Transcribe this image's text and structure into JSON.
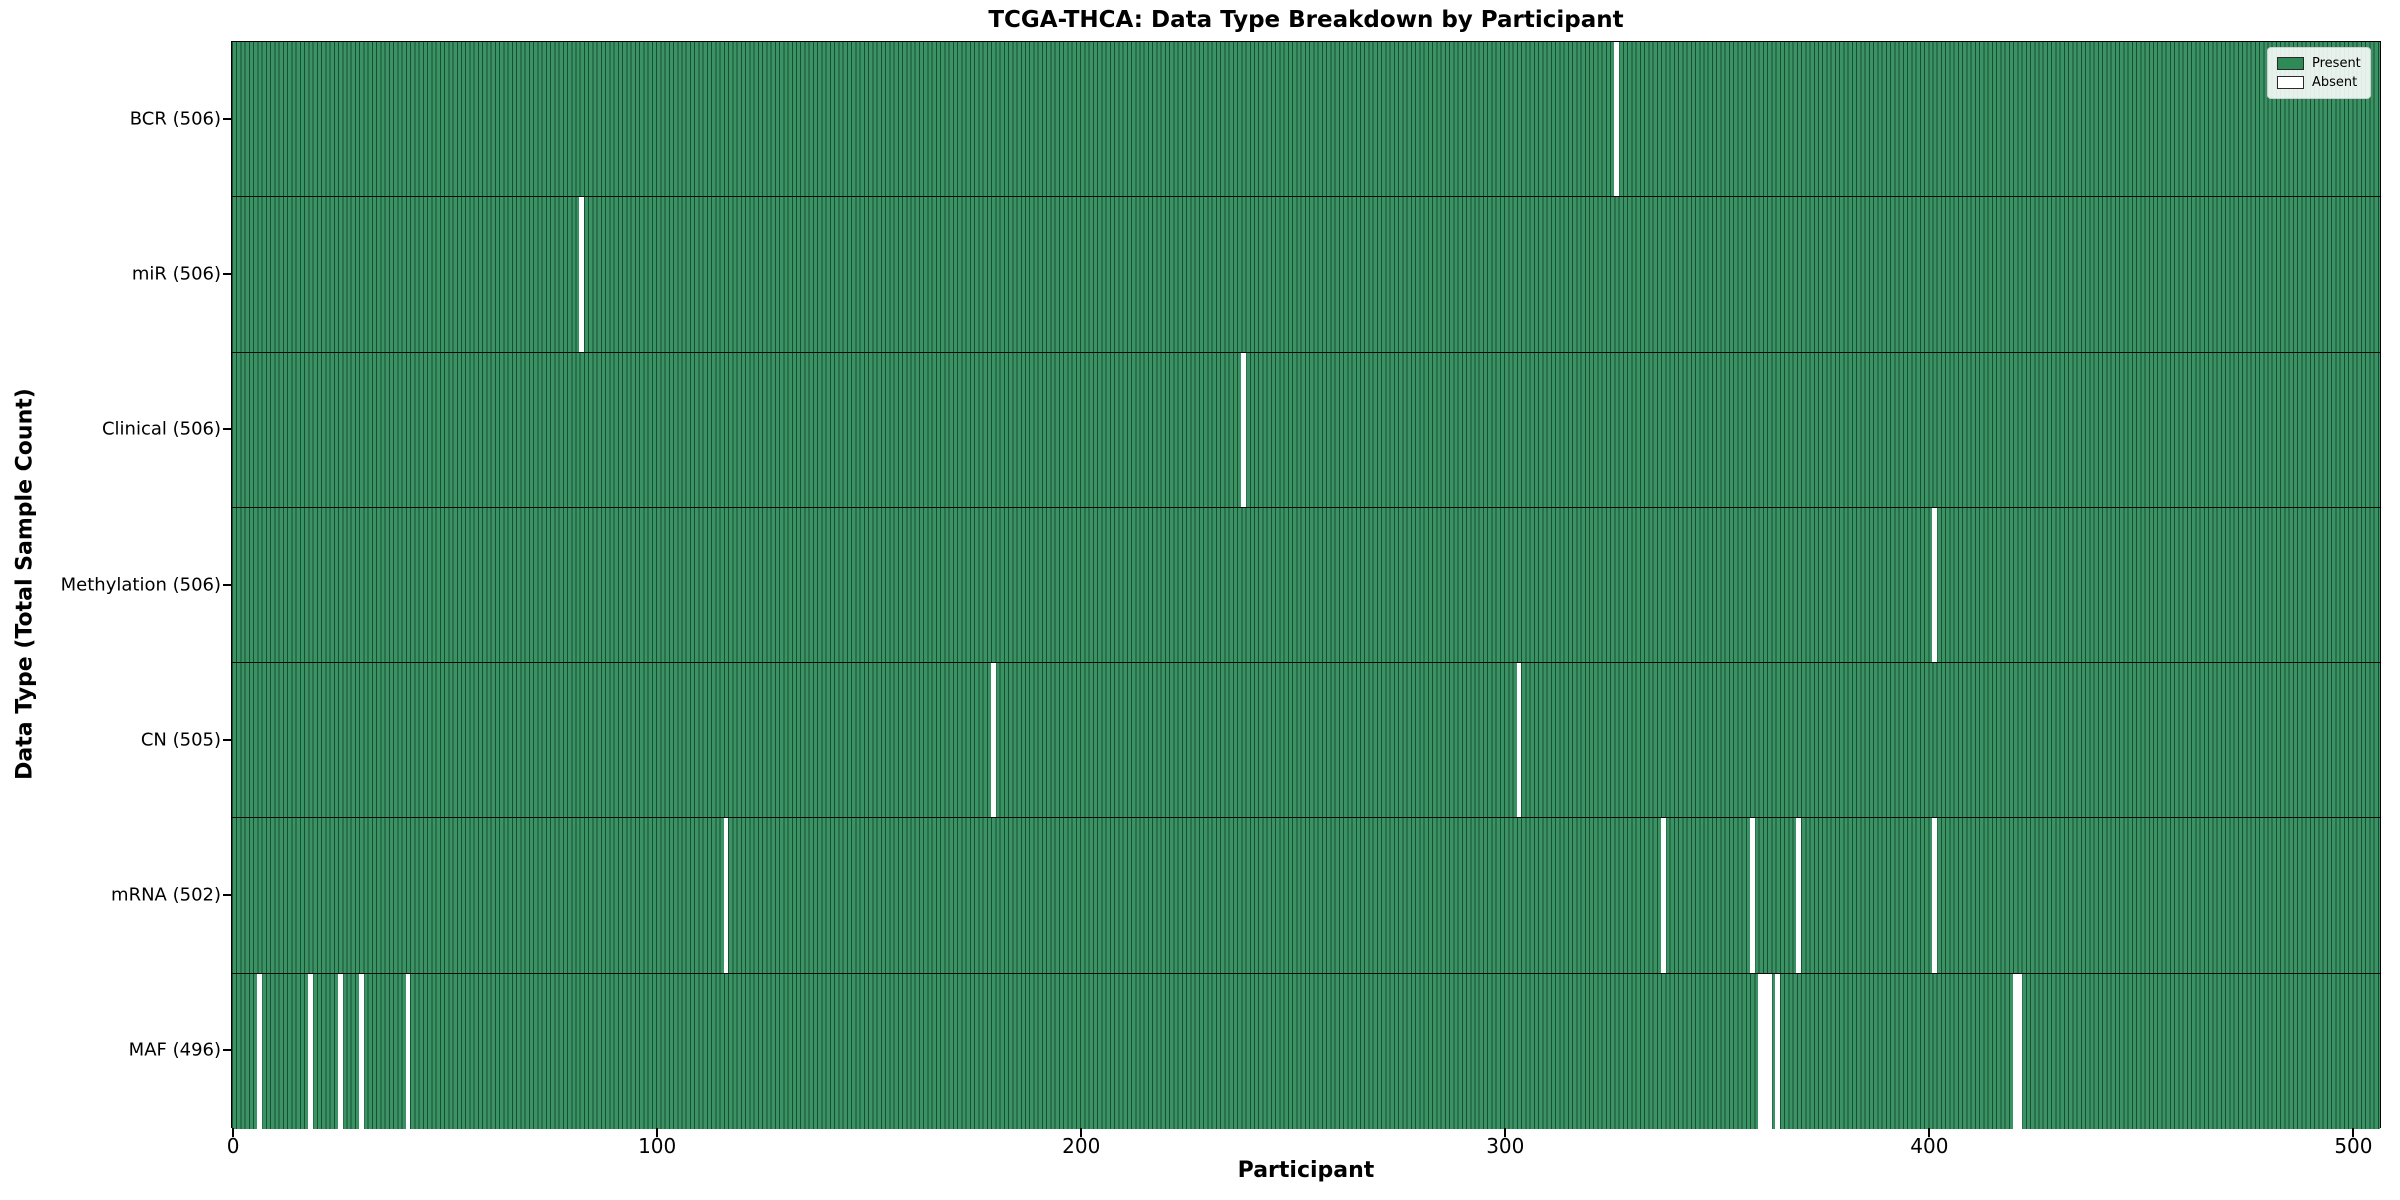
{
  "chart_data": {
    "type": "heatmap",
    "title": "TCGA-THCA: Data Type Breakdown by Participant",
    "xlabel": "Participant",
    "ylabel": "Data Type (Total Sample Count)",
    "x_ticks": [
      0,
      100,
      200,
      300,
      400,
      500
    ],
    "x_range": [
      0,
      507
    ],
    "participants_total": 507,
    "grid": false,
    "legend_position": "upper right",
    "legend": [
      {
        "label": "Present",
        "color": "#2e8b57"
      },
      {
        "label": "Absent",
        "color": "#ffffff"
      }
    ],
    "colors": {
      "present_fill": "#3a9265",
      "bar_edge": "#17502f",
      "absent_fill": "#ffffff"
    },
    "rows": [
      {
        "label": "BCR (506)",
        "data_type": "BCR",
        "present_count": 506,
        "absent_count": 1,
        "absent_participants": [
          326
        ]
      },
      {
        "label": "miR (506)",
        "data_type": "miR",
        "present_count": 506,
        "absent_count": 1,
        "absent_participants": [
          82
        ]
      },
      {
        "label": "Clinical (506)",
        "data_type": "Clinical",
        "present_count": 506,
        "absent_count": 1,
        "absent_participants": [
          238
        ]
      },
      {
        "label": "Methylation (506)",
        "data_type": "Methylation",
        "present_count": 506,
        "absent_count": 1,
        "absent_participants": [
          401
        ]
      },
      {
        "label": "CN (505)",
        "data_type": "CN",
        "present_count": 505,
        "absent_count": 2,
        "absent_participants": [
          179,
          303
        ]
      },
      {
        "label": "mRNA (502)",
        "data_type": "mRNA",
        "present_count": 502,
        "absent_count": 5,
        "absent_participants": [
          116,
          337,
          358,
          369,
          401
        ]
      },
      {
        "label": "MAF (496)",
        "data_type": "MAF",
        "present_count": 496,
        "absent_count": 11,
        "absent_participants": [
          6,
          18,
          25,
          30,
          41,
          360,
          361,
          362,
          364,
          420,
          421
        ]
      }
    ]
  }
}
